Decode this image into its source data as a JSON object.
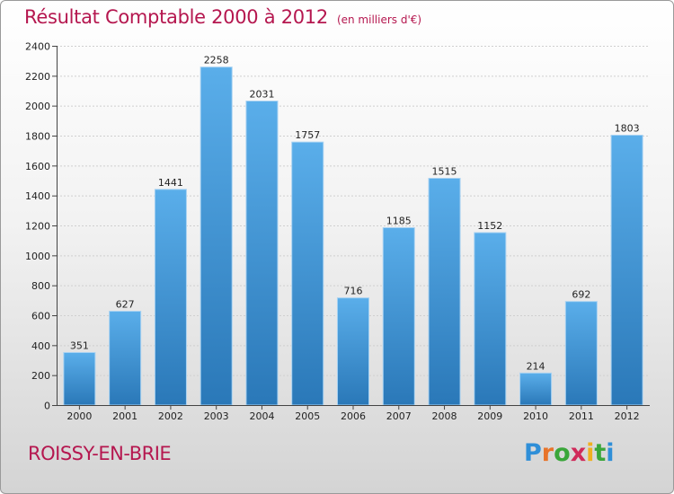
{
  "header": {
    "title": "Résultat Comptable 2000 à 2012",
    "unit_note": "(en milliers d'€)"
  },
  "footer": {
    "city": "ROISSY-EN-BRIE",
    "logo_letters": [
      "P",
      "r",
      "o",
      "x",
      "i",
      "t",
      "i"
    ],
    "logo_colors": [
      "#2f8fd8",
      "#e8742a",
      "#3aa63a",
      "#d02a5a",
      "#f0b020",
      "#3aa63a",
      "#2f8fd8"
    ]
  },
  "colors": {
    "bar_top": "#5aaeea",
    "bar_bottom": "#2a78b8",
    "accent": "#b5174f"
  },
  "chart_data": {
    "type": "bar",
    "title": "Résultat Comptable 2000 à 2012",
    "subtitle": "(en milliers d'€)",
    "xlabel": "",
    "ylabel": "",
    "categories": [
      "2000",
      "2001",
      "2002",
      "2003",
      "2004",
      "2005",
      "2006",
      "2007",
      "2008",
      "2009",
      "2010",
      "2011",
      "2012"
    ],
    "values": [
      351,
      627,
      1441,
      2258,
      2031,
      1757,
      716,
      1185,
      1515,
      1152,
      214,
      692,
      1803
    ],
    "ylim": [
      0,
      2400
    ],
    "yticks": [
      0,
      200,
      400,
      600,
      800,
      1000,
      1200,
      1400,
      1600,
      1800,
      2000,
      2200,
      2400
    ],
    "grid": true,
    "legend": "none"
  }
}
